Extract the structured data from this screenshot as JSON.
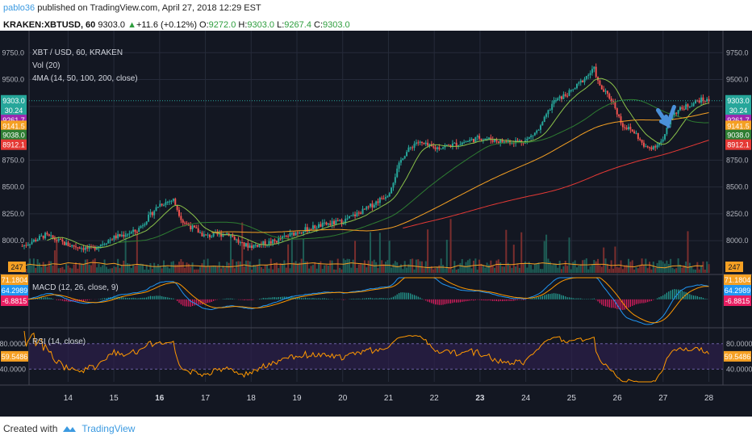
{
  "header": {
    "user": "pablo36",
    "published": "published on TradingView.com, April 27, 2018 12:29 EST"
  },
  "ticker": {
    "symbol": "KRAKEN:XBTUSD, 60",
    "last": "9303.0",
    "change": "+11.6 (+0.12%)",
    "o_label": "O:",
    "o": "9272.0",
    "h_label": "H:",
    "h": "9303.0",
    "l_label": "L:",
    "l": "9267.4",
    "c_label": "C:",
    "c": "9303.0"
  },
  "legend": {
    "title": "XBT / USD, 60, KRAKEN",
    "vol": "Vol (20)",
    "ma": "4MA (14, 50, 100, 200, close)",
    "macd": "MACD (12, 26, close, 9)",
    "rsi": "RSI (14, close)"
  },
  "footer": {
    "created": "Created with",
    "brand": "TradingView"
  },
  "colors": {
    "bg": "#131722",
    "grid": "#262b3a",
    "up": "#26a69a",
    "down": "#ef5350",
    "ma14": "#8bc34a",
    "ma50": "#2e7d32",
    "ma100": "#f5a023",
    "ma200": "#e53935",
    "macd": "#2196f3",
    "signal": "#ff9800",
    "rsi": "#ff9800",
    "rsi_band": "#2c1f4a"
  },
  "chart_data": {
    "type": "candlestick",
    "price_axis": {
      "ticks": [
        "9750.0",
        "9500.0",
        "9250.0",
        "8750.0",
        "8500.0",
        "8250.0",
        "8000.0"
      ],
      "ylim": [
        7700,
        9850
      ]
    },
    "x_ticks": [
      "14",
      "15",
      "16",
      "17",
      "18",
      "19",
      "20",
      "21",
      "22",
      "23",
      "24",
      "25",
      "26",
      "27",
      "28"
    ],
    "price_labels_left": [
      {
        "value": "9303.0",
        "color": "#26a69a"
      },
      {
        "value": "30.24",
        "color": "#26a69a"
      },
      {
        "value": "9261.7",
        "color": "#9c27b0"
      },
      {
        "value": "9141.5",
        "color": "#f5a023"
      },
      {
        "value": "9038.0",
        "color": "#2e7d32"
      },
      {
        "value": "8912.1",
        "color": "#e53935"
      }
    ],
    "volume_label": "247",
    "close_path": [
      [
        "13.0",
        7950
      ],
      [
        "13.5",
        8050
      ],
      [
        "14.0",
        7960
      ],
      [
        "14.5",
        7920
      ],
      [
        "15.0",
        8030
      ],
      [
        "15.5",
        8090
      ],
      [
        "16.0",
        8340
      ],
      [
        "16.3",
        8380
      ],
      [
        "16.5",
        8180
      ],
      [
        "17.0",
        8040
      ],
      [
        "17.5",
        8070
      ],
      [
        "17.8",
        7960
      ],
      [
        "18.0",
        7950
      ],
      [
        "18.5",
        7990
      ],
      [
        "19.0",
        8080
      ],
      [
        "19.5",
        8140
      ],
      [
        "20.0",
        8180
      ],
      [
        "20.5",
        8290
      ],
      [
        "21.0",
        8440
      ],
      [
        "21.3",
        8780
      ],
      [
        "21.6",
        8920
      ],
      [
        "22.0",
        8860
      ],
      [
        "22.5",
        8900
      ],
      [
        "23.0",
        8960
      ],
      [
        "23.5",
        8920
      ],
      [
        "24.0",
        8930
      ],
      [
        "24.3",
        9040
      ],
      [
        "24.6",
        9290
      ],
      [
        "25.0",
        9390
      ],
      [
        "25.3",
        9520
      ],
      [
        "25.5",
        9600
      ],
      [
        "25.6",
        9440
      ],
      [
        "25.9",
        9300
      ],
      [
        "26.1",
        9080
      ],
      [
        "26.4",
        9000
      ],
      [
        "26.6",
        8860
      ],
      [
        "26.8",
        8880
      ],
      [
        "27.0",
        8930
      ],
      [
        "27.2",
        9180
      ],
      [
        "27.5",
        9250
      ],
      [
        "27.8",
        9310
      ],
      [
        "28.0",
        9303
      ]
    ],
    "ma": [
      {
        "name": "14",
        "color": "#8bc34a"
      },
      {
        "name": "50",
        "color": "#2e7d32"
      },
      {
        "name": "100",
        "color": "#f5a023"
      },
      {
        "name": "200",
        "color": "#e53935"
      }
    ],
    "macd": {
      "ylim": [
        -120,
        100
      ],
      "labels": [
        "71.1804",
        "64.2989",
        "-6.8815"
      ]
    },
    "rsi": {
      "ylim": [
        20,
        100
      ],
      "ticks": [
        "80.0000",
        "40.0000"
      ],
      "band": [
        40,
        80
      ],
      "label": "59.5486"
    }
  }
}
